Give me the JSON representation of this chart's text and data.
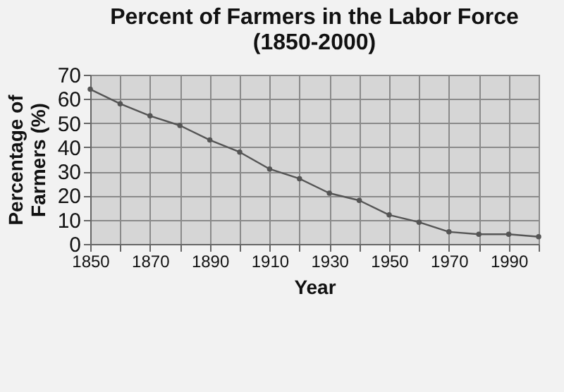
{
  "chart_data": {
    "type": "line",
    "title": "Percent of Farmers in the Labor Force\n(1850-2000)",
    "xlabel": "Year",
    "ylabel": "Percentage of\nFarmers (%)",
    "x": [
      1850,
      1860,
      1870,
      1880,
      1890,
      1900,
      1910,
      1920,
      1930,
      1940,
      1950,
      1960,
      1970,
      1980,
      1990,
      2000
    ],
    "series": [
      {
        "color": "#555555",
        "values": [
          64,
          58,
          53,
          49,
          43,
          38,
          31,
          27,
          21,
          18,
          12,
          9,
          5,
          4,
          4,
          3
        ]
      }
    ],
    "xlim": [
      1850,
      2000
    ],
    "xticks": [
      1850,
      {
        "value": 1860,
        "label": null
      },
      1870,
      {
        "value": 1880,
        "label": null
      },
      1890,
      {
        "value": 1900,
        "label": null
      },
      1910,
      {
        "value": 1920,
        "label": null
      },
      1930,
      {
        "value": 1940,
        "label": null
      },
      1950,
      {
        "value": 1960,
        "label": null
      },
      1970,
      {
        "value": 1980,
        "label": null
      },
      1990,
      {
        "value": 2000,
        "label": null
      }
    ],
    "ylim": [
      0,
      70
    ],
    "yticks": [
      0,
      10,
      20,
      30,
      40,
      50,
      60,
      70
    ],
    "grid": true,
    "marker": "circle",
    "line_style": "solid"
  }
}
